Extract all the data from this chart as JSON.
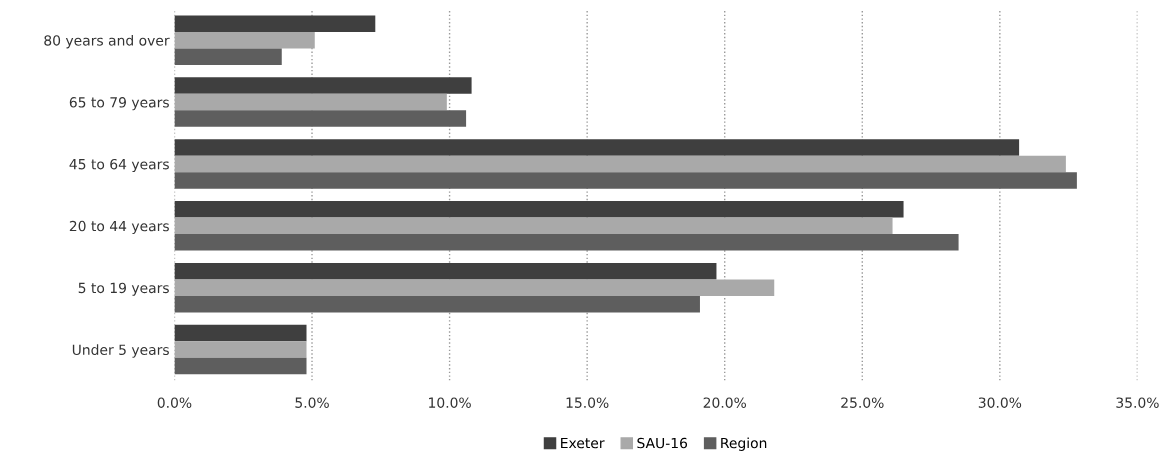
{
  "chart_data": {
    "type": "bar",
    "orientation": "horizontal",
    "categories": [
      "80 years and over",
      "65 to 79 years",
      "45 to 64 years",
      "20 to 44 years",
      "5 to 19 years",
      "Under 5 years"
    ],
    "series": [
      {
        "name": "Exeter",
        "color": "#3f3f3f",
        "values": [
          7.3,
          10.8,
          30.7,
          26.5,
          19.7,
          4.8
        ]
      },
      {
        "name": "SAU-16",
        "color": "#a9a9a9",
        "values": [
          5.1,
          9.9,
          32.4,
          26.1,
          21.8,
          4.8
        ]
      },
      {
        "name": "Region",
        "color": "#5e5e5e",
        "values": [
          3.9,
          10.6,
          32.8,
          28.5,
          19.1,
          4.8
        ]
      }
    ],
    "xlim": [
      0,
      35
    ],
    "xticks": [
      {
        "value": 0,
        "label": "0.0%"
      },
      {
        "value": 5,
        "label": "5.0%"
      },
      {
        "value": 10,
        "label": "10.0%"
      },
      {
        "value": 15,
        "label": "15.0%"
      },
      {
        "value": 20,
        "label": "20.0%"
      },
      {
        "value": 25,
        "label": "25.0%"
      },
      {
        "value": 30,
        "label": "30.0%"
      },
      {
        "value": 35,
        "label": "35.0%"
      }
    ],
    "grid": "x",
    "legend": "bottom"
  }
}
